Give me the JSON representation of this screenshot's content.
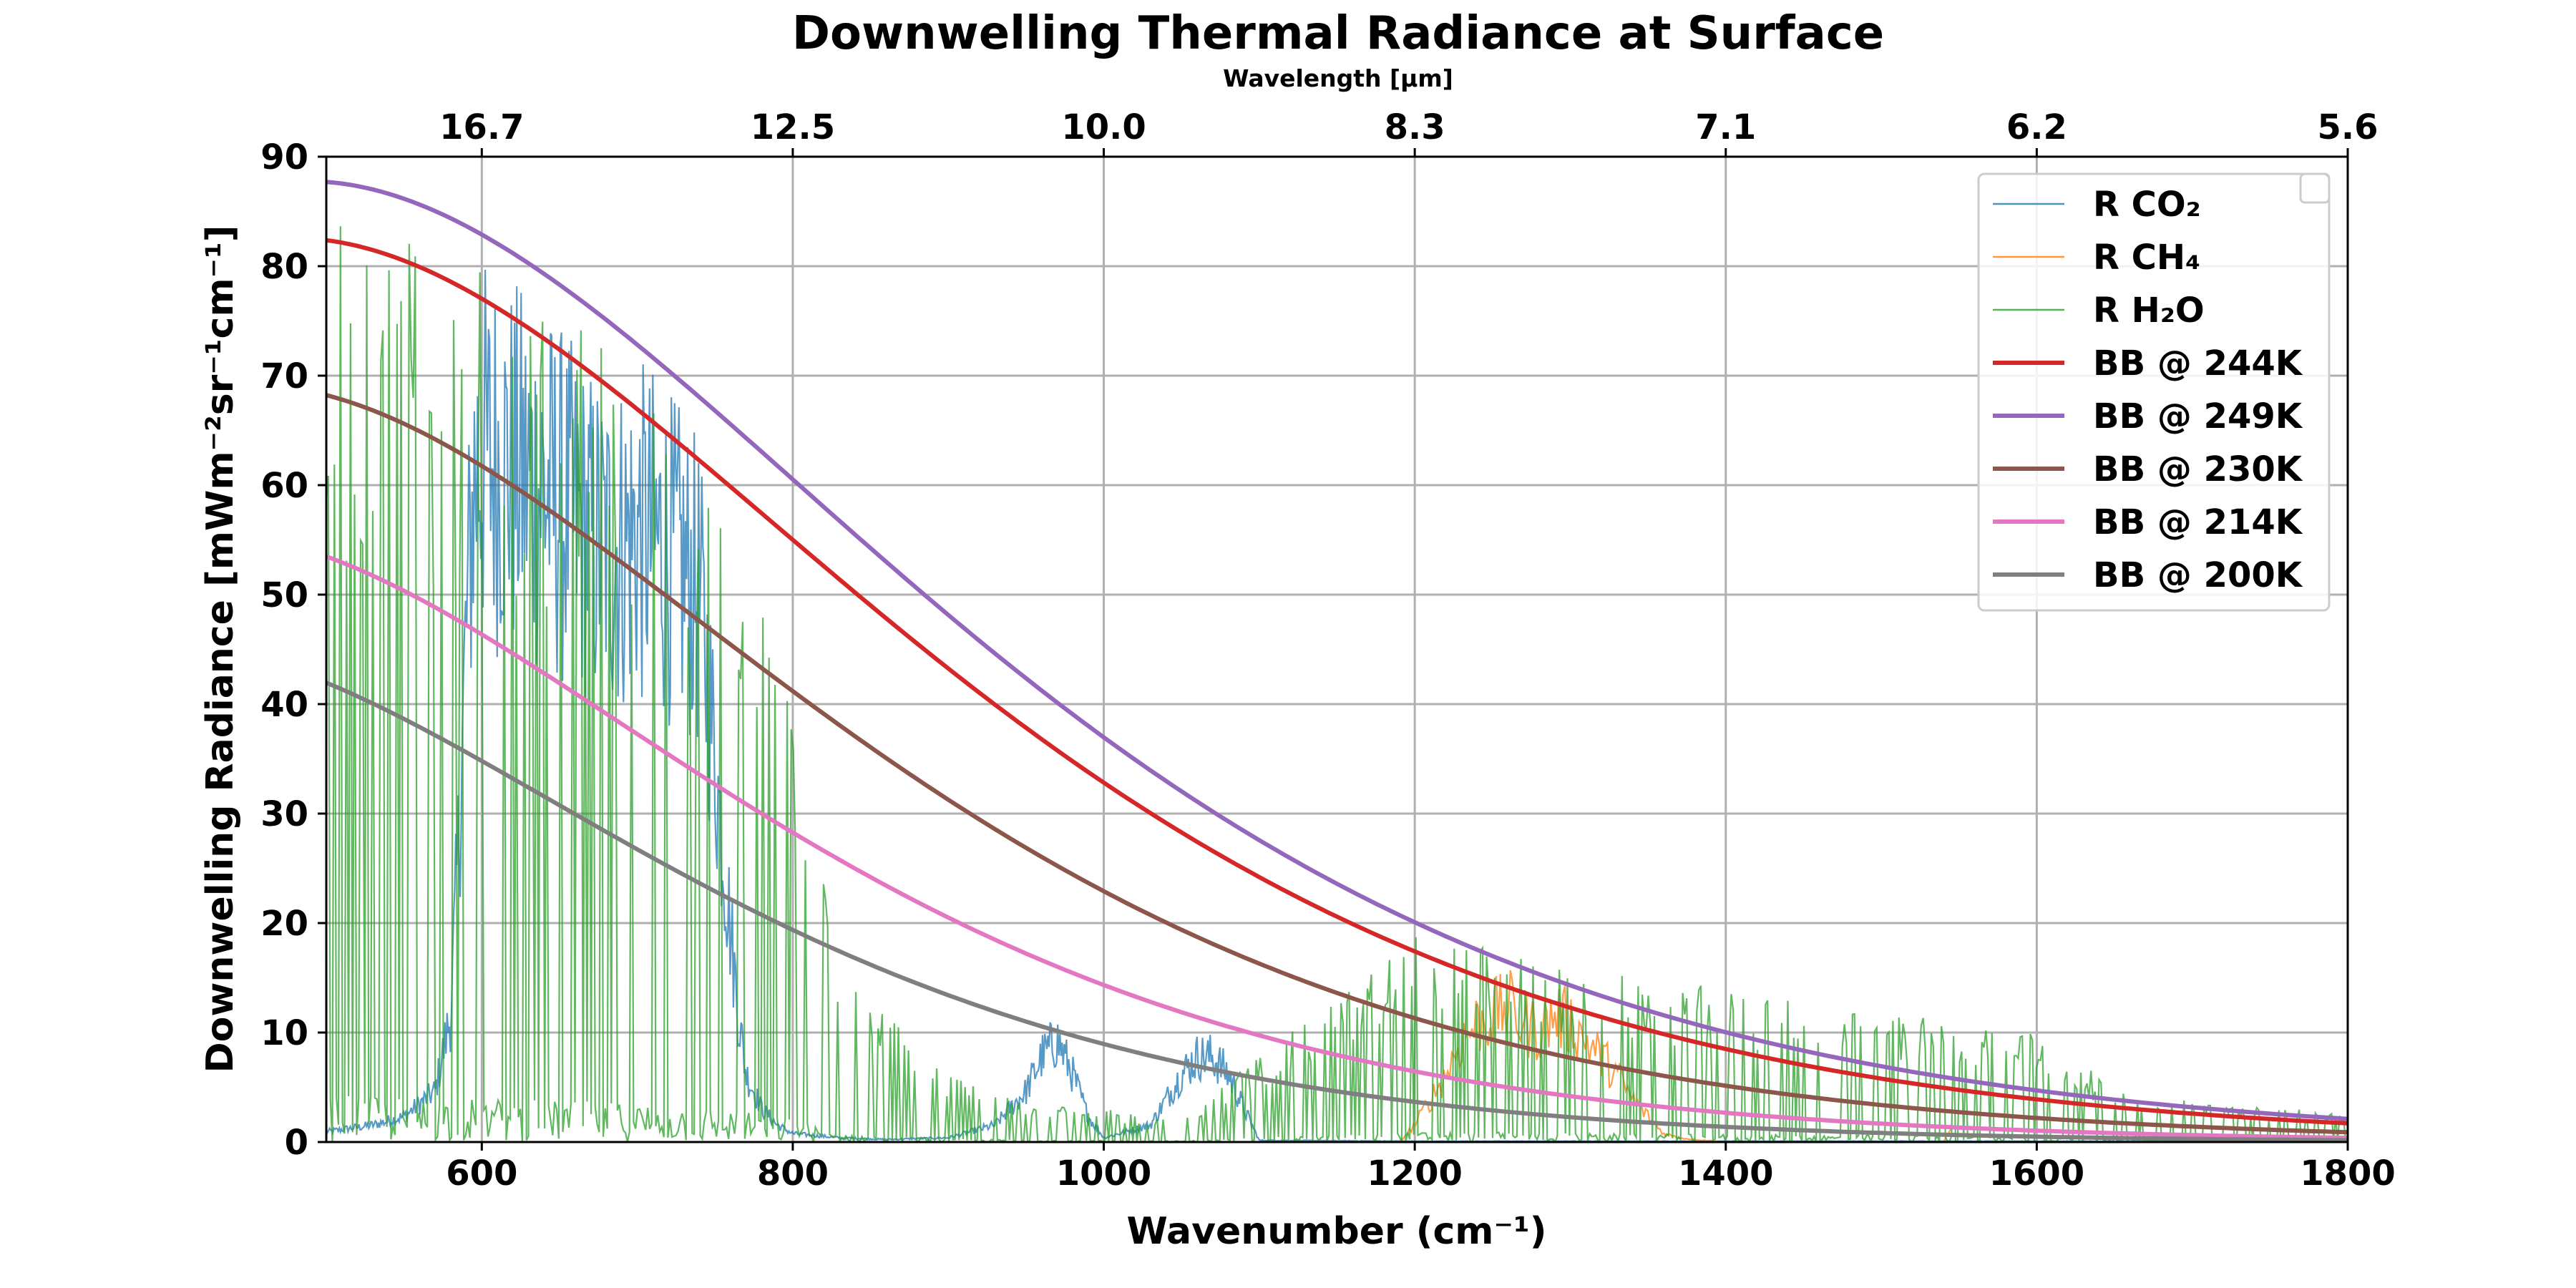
{
  "chart_data": {
    "type": "line",
    "title": "Downwelling Thermal Radiance at Surface",
    "xlabel": "Wavenumber (cm⁻¹)",
    "ylabel": "Downwelling Radiance [mWm⁻²sr⁻¹cm⁻¹]",
    "top_xlabel": "Wavelength [μm]",
    "xlim": [
      500,
      1800
    ],
    "ylim": [
      0,
      90
    ],
    "xticks": [
      600,
      800,
      1000,
      1200,
      1400,
      1600,
      1800
    ],
    "xtick_labels": [
      "600",
      "800",
      "1000",
      "1200",
      "1400",
      "1600",
      "1800"
    ],
    "yticks": [
      0,
      10,
      20,
      30,
      40,
      50,
      60,
      70,
      80,
      90
    ],
    "ytick_labels": [
      "0",
      "10",
      "20",
      "30",
      "40",
      "50",
      "60",
      "70",
      "80",
      "90"
    ],
    "top_xticks": [
      600,
      800,
      1000,
      1200,
      1400,
      1600,
      1800
    ],
    "top_xtick_labels": [
      "16.7",
      "12.5",
      "10.0",
      "8.3",
      "7.1",
      "6.2",
      "5.6"
    ],
    "grid": true,
    "legend_position": "top-right",
    "series": [
      {
        "name": "R CO₂",
        "kind": "spectrum",
        "color": "#1f77b4",
        "x": [
          500,
          530,
          550,
          570,
          580,
          585,
          590,
          595,
          600,
          610,
          620,
          630,
          640,
          650,
          660,
          670,
          680,
          690,
          700,
          710,
          720,
          730,
          740,
          745,
          750,
          755,
          760,
          765,
          770,
          780,
          790,
          800,
          830,
          860,
          900,
          930,
          950,
          960,
          970,
          980,
          990,
          1000,
          1030,
          1050,
          1060,
          1070,
          1080,
          1090,
          1100,
          1200,
          1300,
          1400,
          1500,
          1600,
          1700,
          1800
        ],
        "y": [
          1.2,
          2.0,
          3.0,
          6.0,
          15.0,
          35.0,
          60.0,
          78.0,
          81.0,
          80.0,
          79.0,
          78.0,
          77.0,
          75.0,
          73.0,
          71.0,
          70.0,
          70.5,
          71.5,
          71.0,
          69.0,
          67.0,
          64.0,
          55.0,
          45.0,
          35.0,
          25.0,
          15.0,
          8.0,
          4.0,
          2.0,
          1.0,
          0.5,
          0.3,
          0.5,
          2.0,
          6.0,
          10.0,
          12.0,
          8.0,
          3.0,
          0.5,
          2.0,
          8.0,
          10.0,
          10.0,
          8.0,
          4.0,
          0.2,
          0.1,
          0.1,
          0.1,
          0.1,
          0.1,
          0.1,
          0.1
        ]
      },
      {
        "name": "R CH₄",
        "kind": "spectrum",
        "color": "#ff7f0e",
        "x": [
          1190,
          1200,
          1210,
          1220,
          1230,
          1240,
          1250,
          1260,
          1270,
          1280,
          1290,
          1300,
          1310,
          1320,
          1330,
          1340,
          1350,
          1360,
          1370,
          1380,
          1400,
          1540,
          1545
        ],
        "y": [
          0,
          2,
          5,
          8,
          12,
          14,
          15,
          16,
          14,
          13,
          15,
          14,
          12,
          10,
          8,
          5,
          3,
          1,
          0.5,
          0.3,
          0,
          0,
          1.5
        ]
      },
      {
        "name": "R H₂O",
        "kind": "spectrum",
        "color": "#2ca02c",
        "x": [
          500,
          520,
          540,
          560,
          580,
          600,
          620,
          640,
          660,
          680,
          700,
          720,
          740,
          760,
          780,
          800,
          830,
          860,
          900,
          950,
          1000,
          1050,
          1100,
          1150,
          1200,
          1250,
          1300,
          1350,
          1400,
          1450,
          1500,
          1550,
          1600,
          1650,
          1700,
          1750,
          1800
        ],
        "y": [
          85,
          85,
          84,
          83,
          82,
          80,
          78,
          76,
          75,
          73,
          71,
          70,
          62,
          60,
          50,
          44,
          15,
          12,
          6,
          4,
          3,
          2,
          8,
          13,
          19,
          18,
          16,
          15,
          14,
          13,
          12,
          11,
          10,
          5,
          4,
          3,
          3
        ]
      },
      {
        "name": "BB @ 244K",
        "kind": "blackbody",
        "temperature_K": 244,
        "color": "#d62728"
      },
      {
        "name": "BB @ 249K",
        "kind": "blackbody",
        "temperature_K": 249,
        "color": "#9467bd"
      },
      {
        "name": "BB @ 230K",
        "kind": "blackbody",
        "temperature_K": 230,
        "color": "#8c564b"
      },
      {
        "name": "BB @ 214K",
        "kind": "blackbody",
        "temperature_K": 214,
        "color": "#e377c2"
      },
      {
        "name": "BB @ 200K",
        "kind": "blackbody",
        "temperature_K": 200,
        "color": "#7f7f7f"
      }
    ]
  }
}
